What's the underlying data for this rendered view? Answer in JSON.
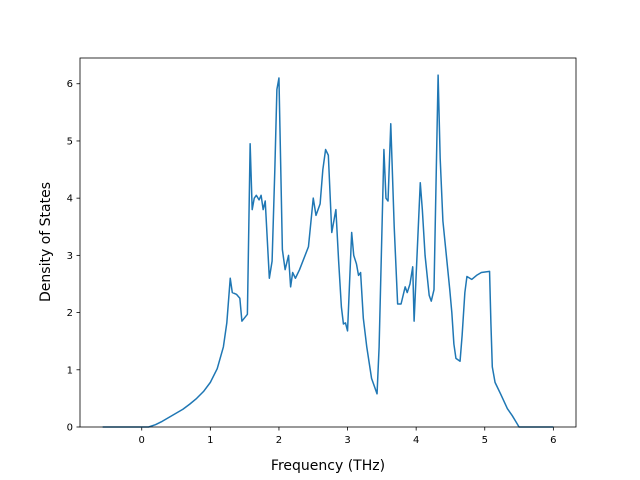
{
  "chart_data": {
    "type": "line",
    "xlabel": "Frequency (THz)",
    "ylabel": "Density of States",
    "x": [
      -0.57,
      0.1,
      0.2,
      0.3,
      0.4,
      0.5,
      0.6,
      0.7,
      0.8,
      0.9,
      1.0,
      1.1,
      1.19,
      1.24,
      1.29,
      1.32,
      1.38,
      1.43,
      1.46,
      1.54,
      1.58,
      1.61,
      1.64,
      1.67,
      1.71,
      1.74,
      1.77,
      1.8,
      1.86,
      1.9,
      1.94,
      1.97,
      2.0,
      2.05,
      2.09,
      2.14,
      2.17,
      2.2,
      2.24,
      2.3,
      2.43,
      2.5,
      2.54,
      2.6,
      2.64,
      2.68,
      2.72,
      2.77,
      2.83,
      2.87,
      2.91,
      2.94,
      2.97,
      3.0,
      3.06,
      3.09,
      3.13,
      3.16,
      3.19,
      3.23,
      3.28,
      3.35,
      3.43,
      3.46,
      3.53,
      3.56,
      3.59,
      3.63,
      3.68,
      3.73,
      3.78,
      3.84,
      3.87,
      3.91,
      3.95,
      3.97,
      4.06,
      4.09,
      4.13,
      4.19,
      4.22,
      4.26,
      4.32,
      4.35,
      4.39,
      4.44,
      4.49,
      4.52,
      4.55,
      4.58,
      4.64,
      4.67,
      4.71,
      4.74,
      4.81,
      4.88,
      4.95,
      5.07,
      5.09,
      5.11,
      5.15,
      5.23,
      5.33,
      5.4,
      5.46,
      5.5,
      6.0
    ],
    "series": [
      {
        "color": "#1f77b4",
        "values": [
          0,
          0,
          0.04,
          0.1,
          0.17,
          0.24,
          0.31,
          0.4,
          0.5,
          0.62,
          0.78,
          1.02,
          1.4,
          1.82,
          2.6,
          2.35,
          2.32,
          2.25,
          1.85,
          1.97,
          4.95,
          3.8,
          4.0,
          4.05,
          3.97,
          4.05,
          3.8,
          3.95,
          2.6,
          2.9,
          4.5,
          5.9,
          6.1,
          3.1,
          2.75,
          3.0,
          2.45,
          2.7,
          2.6,
          2.75,
          3.15,
          4.0,
          3.7,
          3.9,
          4.5,
          4.85,
          4.75,
          3.4,
          3.8,
          2.9,
          2.1,
          1.8,
          1.82,
          1.68,
          3.4,
          3.0,
          2.85,
          2.65,
          2.7,
          1.9,
          1.4,
          0.85,
          0.58,
          1.4,
          4.85,
          4.0,
          3.95,
          5.3,
          3.5,
          2.15,
          2.15,
          2.45,
          2.35,
          2.5,
          2.8,
          1.85,
          4.27,
          3.8,
          3.0,
          2.3,
          2.2,
          2.4,
          6.15,
          4.7,
          3.6,
          3.0,
          2.4,
          2.0,
          1.45,
          1.2,
          1.15,
          1.6,
          2.35,
          2.63,
          2.58,
          2.65,
          2.7,
          2.72,
          1.8,
          1.05,
          0.78,
          0.58,
          0.32,
          0.2,
          0.08,
          0,
          0
        ]
      }
    ],
    "xlim": [
      -0.9,
      6.33
    ],
    "ylim": [
      0,
      6.45
    ],
    "xticks": [
      0,
      1,
      2,
      3,
      4,
      5,
      6
    ],
    "yticks": [
      0,
      1,
      2,
      3,
      4,
      5,
      6
    ]
  }
}
